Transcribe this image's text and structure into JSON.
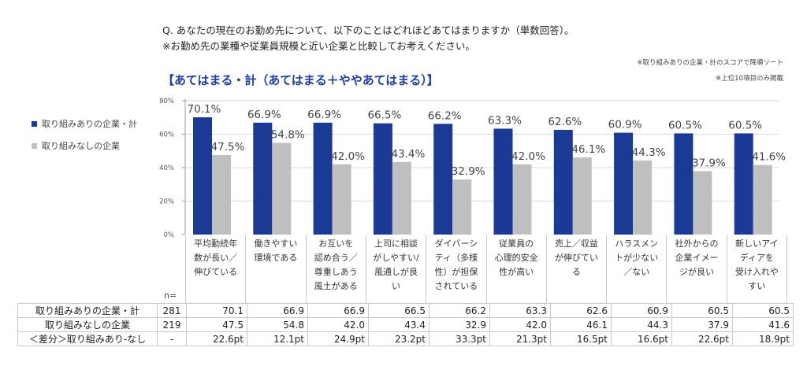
{
  "header": {
    "question": "Q. あなたの現在のお勤め先について、以下のことはどれほどあてはまりますか（単数回答）。",
    "question_note": "※お勤め先の業種や従業員規模と近い企業と比較してお考えください。",
    "sort_note": "※取り組みありの企業・計のスコアで降順ソート",
    "top_note": "※上位10項目のみ掲載",
    "subtitle": "【あてはまる・計（あてはまる＋ややあてはまる）】"
  },
  "colors": {
    "with": "#1b3a96",
    "without": "#bfbfbf",
    "subtitle": "#1f3fa0",
    "grid": "#d9d9d9"
  },
  "chart_data": {
    "type": "bar",
    "title": "【あてはまる・計（あてはまる＋ややあてはまる）】",
    "xlabel": "",
    "ylabel": "",
    "ylim": [
      0,
      80
    ],
    "yticks": [
      0,
      20,
      40,
      60,
      80
    ],
    "ytick_labels": [
      "0%",
      "20%",
      "40%",
      "60%",
      "80%"
    ],
    "grid": true,
    "legend_position": "left",
    "categories": [
      "平均勤続年数が長い／伸びている",
      "働きやすい環境である",
      "お互いを認め合う／尊重しあう風土がある",
      "上司に相談がしやすい/風通しが良い",
      "ダイバーシティ（多様性）が担保されている",
      "従業員の心理的安全性が高い",
      "売上／収益が伸びている",
      "ハラスメントが少ない／ない",
      "社外からの企業イメージが良い",
      "新しいアイディアを受け入れやすい"
    ],
    "category_lines": [
      [
        "平均勤続年",
        "数が長い／",
        "伸びている"
      ],
      [
        "働きやすい",
        "環境である"
      ],
      [
        "お互いを",
        "認め合う／",
        "尊重しあう",
        "風土がある"
      ],
      [
        "上司に相談",
        "がしやすい/",
        "風通しが良",
        "い"
      ],
      [
        "ダイバーシ",
        "ティ（多様",
        "性）が担保",
        "されている"
      ],
      [
        "従業員の",
        "心理的安全",
        "性が高い"
      ],
      [
        "売上／収益",
        "が伸びてい",
        "る"
      ],
      [
        "ハラスメン",
        "トが少ない",
        "／ない"
      ],
      [
        "社外からの",
        "企業イメー",
        "ジが良い"
      ],
      [
        "新しいアイ",
        "ディアを",
        "受け入れや",
        "すい"
      ]
    ],
    "series": [
      {
        "name": "取り組みありの企業・計",
        "n": "281",
        "values": [
          70.1,
          66.9,
          66.9,
          66.5,
          66.2,
          63.3,
          62.6,
          60.9,
          60.5,
          60.5
        ],
        "labels": [
          "70.1%",
          "66.9%",
          "66.9%",
          "66.5%",
          "66.2%",
          "63.3%",
          "62.6%",
          "60.9%",
          "60.5%",
          "60.5%"
        ]
      },
      {
        "name": "取り組みなしの企業",
        "n": "219",
        "values": [
          47.5,
          54.8,
          42.0,
          43.4,
          32.9,
          42.0,
          46.1,
          44.3,
          37.9,
          41.6
        ],
        "labels": [
          "47.5%",
          "54.8%",
          "42.0%",
          "43.4%",
          "32.9%",
          "42.0%",
          "46.1%",
          "44.3%",
          "37.9%",
          "41.6%"
        ]
      }
    ]
  },
  "table": {
    "n_header": "n=",
    "rows": [
      {
        "label": "取り組みありの企業・計",
        "n": "281",
        "cells": [
          "70.1",
          "66.9",
          "66.9",
          "66.5",
          "66.2",
          "63.3",
          "62.6",
          "60.9",
          "60.5",
          "60.5"
        ]
      },
      {
        "label": "取り組みなしの企業",
        "n": "219",
        "cells": [
          "47.5",
          "54.8",
          "42.0",
          "43.4",
          "32.9",
          "42.0",
          "46.1",
          "44.3",
          "37.9",
          "41.6"
        ]
      },
      {
        "label": "＜差分＞取り組みあり-なし",
        "n": "-",
        "cells": [
          "22.6pt",
          "12.1pt",
          "24.9pt",
          "23.2pt",
          "33.3pt",
          "21.3pt",
          "16.5pt",
          "16.6pt",
          "22.6pt",
          "18.9pt"
        ]
      }
    ]
  }
}
